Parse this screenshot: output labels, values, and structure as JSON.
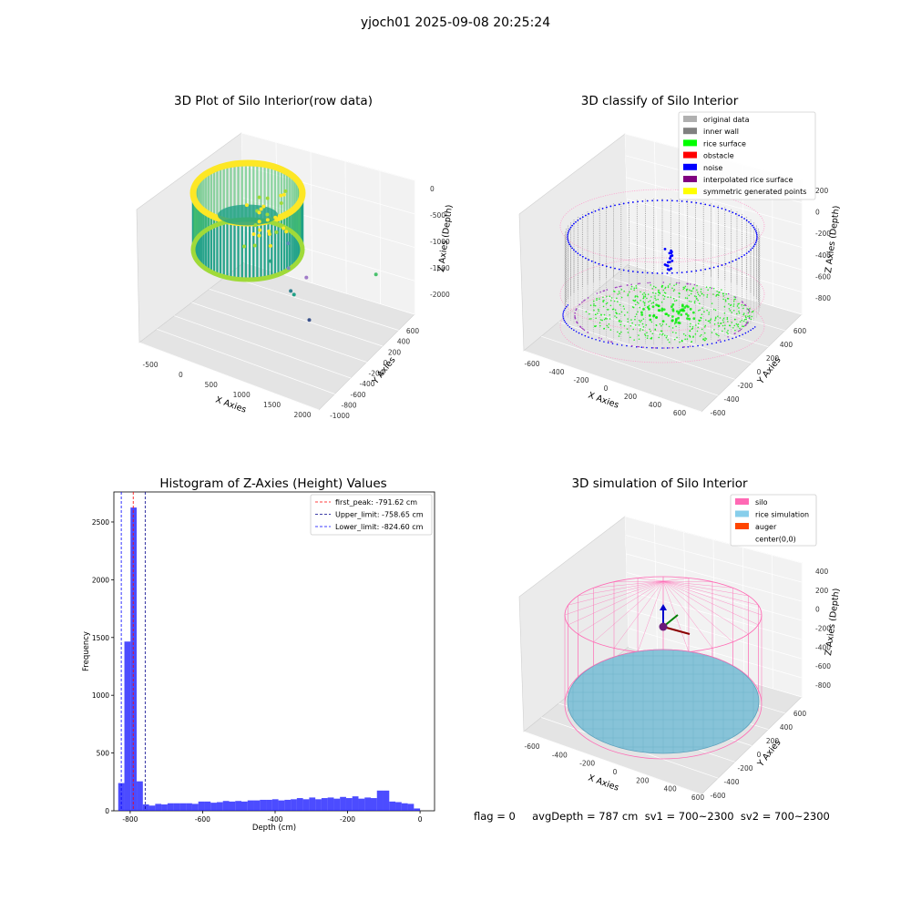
{
  "figure": {
    "suptitle": "yjoch01 2025-09-08 20:25:24",
    "footer": "flag = 0     avgDepth = 787 cm  sv1 = 700~2300  sv2 = 700~2300"
  },
  "chart_data": [
    {
      "type": "scatter",
      "title": "3D Plot of Silo Interior(row data)",
      "xlabel": "X Axies",
      "ylabel": "Y Axies",
      "zlabel": "Z Axies (Depth)",
      "x_ticks": [
        "-500",
        "0",
        "500",
        "1000",
        "1500",
        "2000"
      ],
      "y_ticks": [
        "-1000",
        "-800",
        "-600",
        "-400",
        "-200",
        "0",
        "200",
        "400",
        "600"
      ],
      "z_ticks": [
        "0",
        "-500",
        "-1000",
        "-1500",
        "-2000"
      ],
      "xlim": [
        -650,
        2100
      ],
      "ylim": [
        -1000,
        700
      ],
      "zlim": [
        -2300,
        0
      ],
      "colormap": [
        "#1fa187",
        "#4ac16d",
        "#a0da39",
        "#fde725"
      ],
      "outliers": [
        {
          "x": 550,
          "y": 100,
          "z": -1460,
          "color": "#5b8fb9"
        },
        {
          "x": 1800,
          "y": 300,
          "z": -1600,
          "color": "#4ac16d"
        },
        {
          "x": 400,
          "y": -150,
          "z": -1750,
          "color": "#26a386"
        },
        {
          "x": 650,
          "y": -100,
          "z": -1800,
          "color": "#7a8fc0"
        },
        {
          "x": 900,
          "y": -50,
          "z": -1900,
          "color": "#a07ac8"
        },
        {
          "x": 850,
          "y": -450,
          "z": -1950,
          "color": "#2e7e8e"
        },
        {
          "x": 900,
          "y": -450,
          "z": -2000,
          "color": "#1fa187"
        },
        {
          "x": 1300,
          "y": -800,
          "z": -2100,
          "color": "#3b528b"
        }
      ]
    },
    {
      "type": "scatter",
      "title": "3D classify of Silo Interior",
      "xlabel": "X Axies",
      "ylabel": "Y Axies",
      "zlabel": "Z Axies (Depth)",
      "x_ticks": [
        "-600",
        "-400",
        "-200",
        "0",
        "200",
        "400",
        "600"
      ],
      "y_ticks": [
        "-600",
        "-400",
        "-200",
        "0",
        "200",
        "400",
        "600"
      ],
      "z_ticks": [
        "200",
        "0",
        "-200",
        "-400",
        "-600",
        "-800"
      ],
      "legend_position": "upper right",
      "legend": [
        {
          "label": "original data",
          "color": "#b0b0b0"
        },
        {
          "label": "inner wall",
          "color": "#808080"
        },
        {
          "label": "rice surface",
          "color": "#00ff00"
        },
        {
          "label": "obstacle",
          "color": "#ff0000"
        },
        {
          "label": "noise",
          "color": "#0000ff"
        },
        {
          "label": "interpolated rice surface",
          "color": "#800080"
        },
        {
          "label": "symmetric generated points",
          "color": "#ffff00"
        }
      ]
    },
    {
      "type": "bar",
      "title": "Histogram of Z-Axies (Height) Values",
      "xlabel": "Depth (cm)",
      "ylabel": "Frequency",
      "xlim": [
        -845,
        40
      ],
      "ylim": [
        0,
        2760
      ],
      "x_ticks": [
        -800,
        -600,
        -400,
        -200,
        0
      ],
      "y_ticks": [
        0,
        500,
        1000,
        1500,
        2000,
        2500
      ],
      "bar_color": "#0000ff",
      "bin_edges": [
        -833,
        -816,
        -799,
        -782,
        -765,
        -748,
        -731,
        -714,
        -697,
        -680,
        -663,
        -646,
        -629,
        -612,
        -595,
        -578,
        -561,
        -544,
        -527,
        -510,
        -493,
        -476,
        -459,
        -442,
        -425,
        -408,
        -391,
        -374,
        -357,
        -340,
        -323,
        -306,
        -289,
        -272,
        -255,
        -238,
        -221,
        -204,
        -187,
        -170,
        -153,
        -136,
        -119,
        -102,
        -85,
        -68,
        -51,
        -34,
        -17,
        0
      ],
      "values": [
        240,
        1465,
        2625,
        255,
        55,
        45,
        60,
        55,
        65,
        65,
        65,
        65,
        60,
        80,
        80,
        70,
        75,
        85,
        80,
        85,
        80,
        90,
        90,
        95,
        95,
        100,
        90,
        95,
        100,
        110,
        100,
        115,
        100,
        110,
        115,
        105,
        120,
        110,
        125,
        105,
        115,
        110,
        175,
        175,
        80,
        75,
        65,
        60,
        20
      ],
      "vlines": [
        {
          "label": "first_peak: -791.62 cm",
          "x": -791.62,
          "color": "#ff0000"
        },
        {
          "label": "Upper_limit: -758.65 cm",
          "x": -758.65,
          "color": "#00008b"
        },
        {
          "label": "Lower_limit: -824.60 cm",
          "x": -824.6,
          "color": "#0000ff"
        }
      ],
      "legend_position": "upper right"
    },
    {
      "type": "scatter",
      "title": "3D simulation of Silo Interior",
      "xlabel": "X Axies",
      "ylabel": "Y Axies",
      "zlabel": "Z Axies (Depth)",
      "x_ticks": [
        "-600",
        "-400",
        "-200",
        "0",
        "200",
        "400",
        "600"
      ],
      "y_ticks": [
        "-600",
        "-400",
        "-200",
        "0",
        "200",
        "400",
        "600"
      ],
      "z_ticks": [
        "400",
        "200",
        "0",
        "-200",
        "-400",
        "-600",
        "-800"
      ],
      "legend_position": "upper right",
      "legend": [
        {
          "label": "silo",
          "color": "#ff69b4"
        },
        {
          "label": "rice simulation",
          "color": "#87ceeb"
        },
        {
          "label": "auger",
          "color": "#ff4500"
        },
        {
          "label": "center(0,0)",
          "color": "#ffffff"
        }
      ]
    }
  ]
}
